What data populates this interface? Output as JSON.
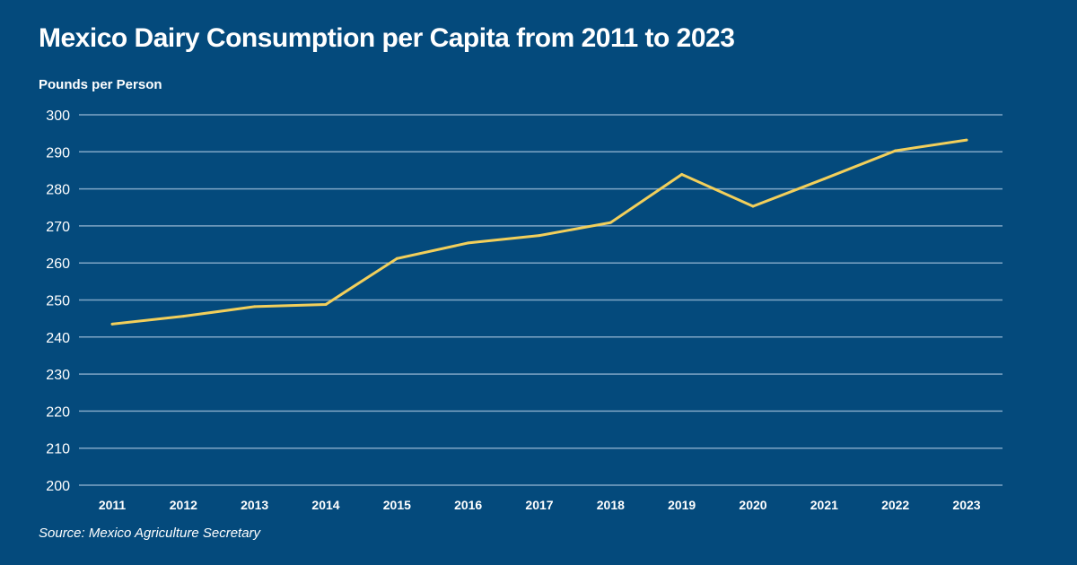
{
  "chart_data": {
    "type": "line",
    "title": "Mexico Dairy Consumption per Capita from 2011 to 2023",
    "ylabel": "Pounds per Person",
    "xlabel": "",
    "source": "Source: Mexico Agriculture Secretary",
    "categories": [
      "2011",
      "2012",
      "2013",
      "2014",
      "2015",
      "2016",
      "2017",
      "2018",
      "2019",
      "2020",
      "2021",
      "2022",
      "2023"
    ],
    "values": [
      243.5,
      245.6,
      248.2,
      248.8,
      261.2,
      265.4,
      267.4,
      270.9,
      283.9,
      275.3,
      282.7,
      290.3,
      293.2
    ],
    "ylim": [
      200,
      300
    ],
    "yticks": [
      "200",
      "210",
      "220",
      "230",
      "240",
      "250",
      "260",
      "270",
      "280",
      "290",
      "300"
    ],
    "grid": true,
    "legend": "none",
    "colors": {
      "background": "#044a7c",
      "line": "#f2cf5b",
      "grid": "#7fa6c6"
    }
  }
}
